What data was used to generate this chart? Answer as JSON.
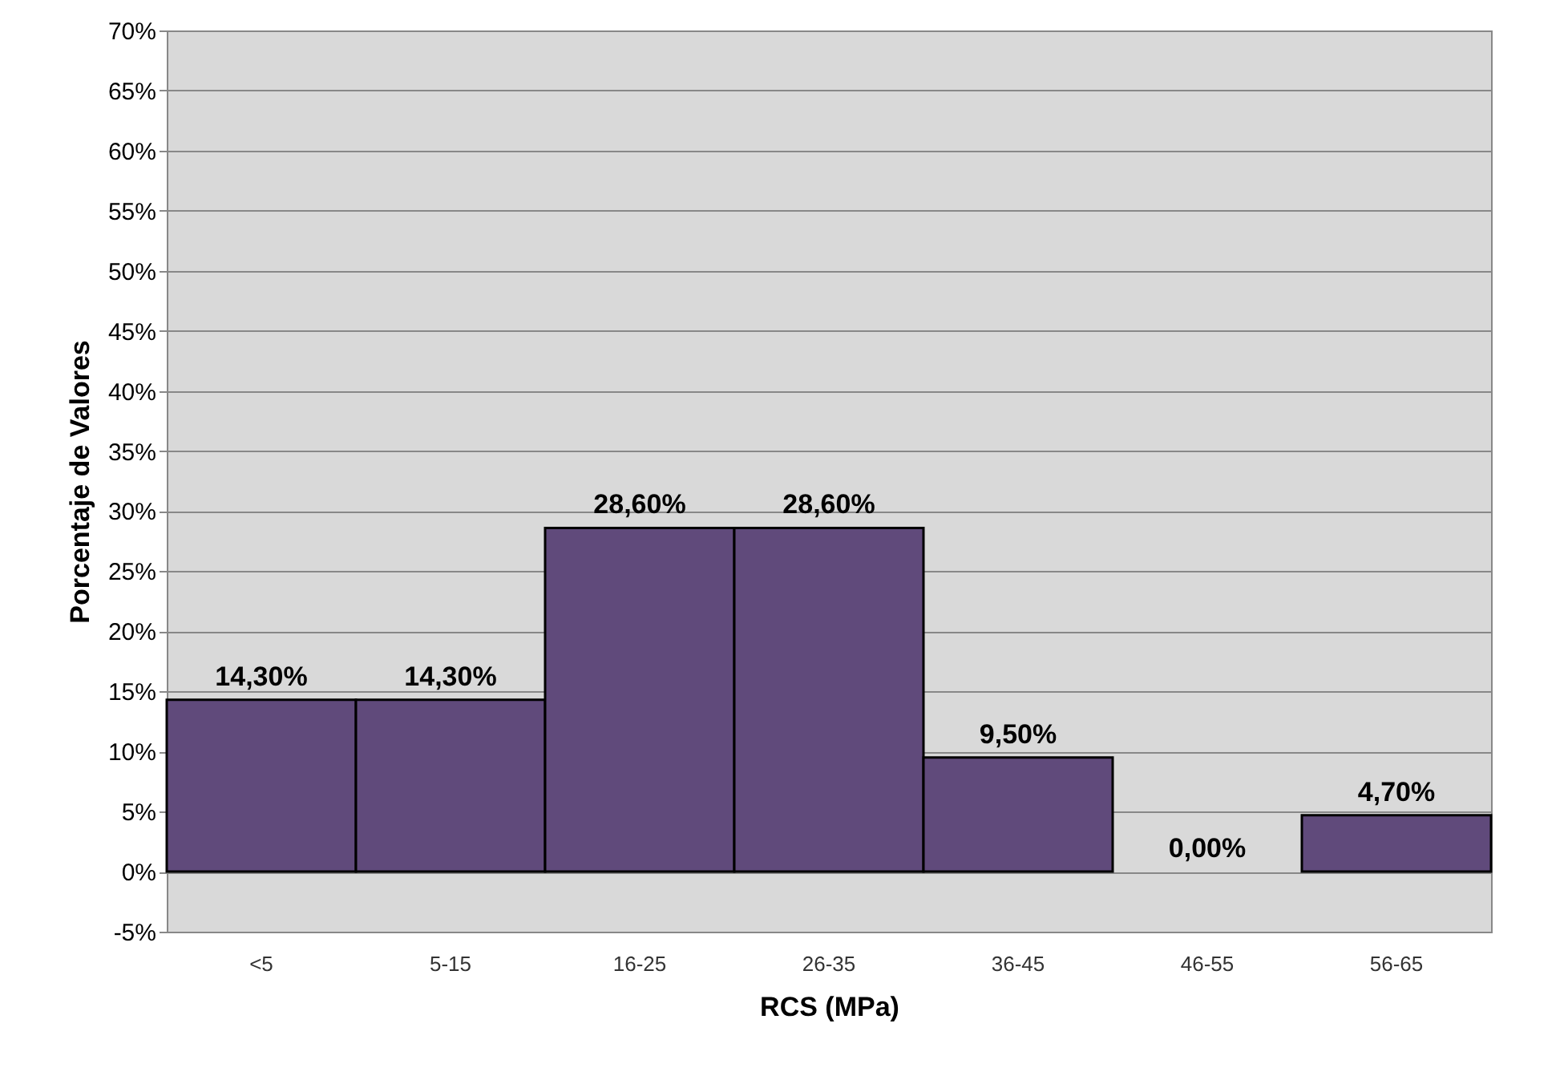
{
  "chart_data": {
    "type": "bar",
    "xlabel": "RCS (MPa)",
    "ylabel": "Porcentaje de Valores",
    "categories": [
      "<5",
      "5-15",
      "16-25",
      "26-35",
      "36-45",
      "46-55",
      "56-65"
    ],
    "values": [
      14.3,
      14.3,
      28.6,
      28.6,
      9.5,
      0,
      4.7
    ],
    "value_labels": [
      "14,30%",
      "14,30%",
      "28,60%",
      "28,60%",
      "9,50%",
      "0,00%",
      "4,70%"
    ],
    "color": "#604a7b",
    "ylim": [
      -5,
      70
    ],
    "yticks": [
      {
        "value": -5,
        "label": "-5%"
      },
      {
        "value": 0,
        "label": "0%"
      },
      {
        "value": 5,
        "label": "5%"
      },
      {
        "value": 10,
        "label": "10%"
      },
      {
        "value": 15,
        "label": "15%"
      },
      {
        "value": 20,
        "label": "20%"
      },
      {
        "value": 25,
        "label": "25%"
      },
      {
        "value": 30,
        "label": "30%"
      },
      {
        "value": 35,
        "label": "35%"
      },
      {
        "value": 40,
        "label": "40%"
      },
      {
        "value": 45,
        "label": "45%"
      },
      {
        "value": 50,
        "label": "50%"
      },
      {
        "value": 55,
        "label": "55%"
      },
      {
        "value": 60,
        "label": "60%"
      },
      {
        "value": 65,
        "label": "65%"
      },
      {
        "value": 70,
        "label": "70%"
      }
    ],
    "grid": "y"
  }
}
